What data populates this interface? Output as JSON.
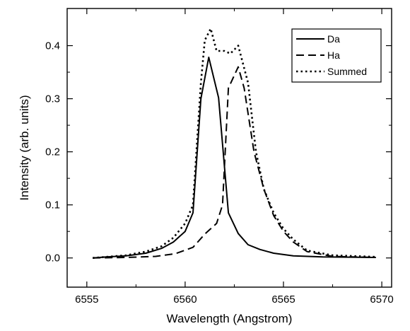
{
  "chart_data": {
    "type": "line",
    "title": "",
    "xlabel": "Wavelength (Angstrom)",
    "ylabel": "Intensity (arb. units)",
    "xlim": [
      6554,
      6570.5
    ],
    "ylim": [
      -0.055,
      0.47
    ],
    "xticks": [
      6555,
      6560,
      6565,
      6570
    ],
    "yticks": [
      0.0,
      0.1,
      0.2,
      0.3,
      0.4
    ],
    "ytick_labels": [
      "0.0",
      "0.1",
      "0.2",
      "0.3",
      "0.4"
    ],
    "grid": false,
    "legend_position": "top-right",
    "series": [
      {
        "name": "Da",
        "style": "solid",
        "x": [
          6555.3,
          6556,
          6557,
          6558,
          6558.8,
          6559.4,
          6560,
          6560.4,
          6560.8,
          6561.2,
          6561.7,
          6562.2,
          6562.7,
          6563.2,
          6563.8,
          6564.5,
          6565.5,
          6567,
          6569.7
        ],
        "y": [
          0.0,
          0.002,
          0.004,
          0.009,
          0.018,
          0.03,
          0.05,
          0.085,
          0.3,
          0.378,
          0.302,
          0.085,
          0.046,
          0.025,
          0.016,
          0.009,
          0.004,
          0.002,
          0.001
        ]
      },
      {
        "name": "Ha",
        "style": "dashed",
        "x": [
          6555.3,
          6557,
          6558.5,
          6559.5,
          6560.4,
          6561,
          6561.6,
          6561.9,
          6562.2,
          6562.7,
          6563,
          6563.5,
          6564,
          6564.5,
          6565,
          6565.5,
          6566.2,
          6567.5,
          6569.7
        ],
        "y": [
          0.0,
          0.001,
          0.003,
          0.008,
          0.02,
          0.045,
          0.065,
          0.1,
          0.32,
          0.36,
          0.32,
          0.2,
          0.13,
          0.08,
          0.05,
          0.03,
          0.012,
          0.003,
          0.001
        ]
      },
      {
        "name": "Summed",
        "style": "dotted",
        "x": [
          6555.3,
          6556,
          6557,
          6558,
          6558.8,
          6559.4,
          6560,
          6560.4,
          6560.8,
          6561,
          6561.3,
          6561.6,
          6562,
          6562.3,
          6562.7,
          6563.2,
          6563.6,
          6564,
          6564.5,
          6565,
          6565.5,
          6566.2,
          6567.5,
          6569.7
        ],
        "y": [
          0.0,
          0.002,
          0.005,
          0.012,
          0.022,
          0.038,
          0.065,
          0.1,
          0.33,
          0.41,
          0.432,
          0.39,
          0.39,
          0.385,
          0.4,
          0.33,
          0.2,
          0.13,
          0.085,
          0.055,
          0.035,
          0.014,
          0.005,
          0.002
        ]
      }
    ]
  }
}
